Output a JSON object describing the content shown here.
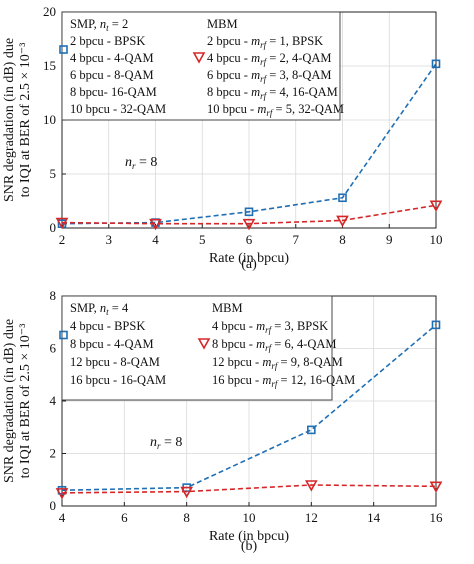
{
  "chart_data": [
    {
      "type": "line",
      "panel_label": "(a)",
      "xlabel": "Rate (in bpcu)",
      "ylabel_line1": "SNR degradation (in dB) due",
      "ylabel_line2": "to IQI at BER of 2.5 × 10⁻³",
      "xlim": [
        2,
        10
      ],
      "ylim": [
        0,
        20
      ],
      "xticks": [
        2,
        3,
        4,
        5,
        6,
        7,
        8,
        9,
        10
      ],
      "yticks": [
        0,
        5,
        10,
        15,
        20
      ],
      "grid": true,
      "legend_placement": "top-left",
      "annotation": "n_r = 8",
      "legend": {
        "smp_header": "SMP, n_t = 2",
        "mbm_header": "MBM",
        "smp_entries": [
          "2 bpcu - BPSK",
          "4 bpcu - 4-QAM",
          "6 bpcu - 8-QAM",
          "8 bpcu- 16-QAM",
          "10 bpcu - 32-QAM"
        ],
        "mbm_entries": [
          "2 bpcu - m_rf = 1, BPSK",
          "4 bpcu - m_rf = 2, 4-QAM",
          "6 bpcu - m_rf = 3, 8-QAM",
          "8 bpcu - m_rf = 4, 16-QAM",
          "10 bpcu - m_rf = 5, 32-QAM"
        ]
      },
      "series": [
        {
          "name": "SMP",
          "color": "#1f6fb5",
          "marker": "square",
          "x": [
            2,
            4,
            6,
            8,
            10
          ],
          "y": [
            0.4,
            0.5,
            1.5,
            2.8,
            15.2
          ]
        },
        {
          "name": "MBM",
          "color": "#d62728",
          "marker": "triangle-down",
          "x": [
            2,
            4,
            6,
            8,
            10
          ],
          "y": [
            0.5,
            0.4,
            0.4,
            0.7,
            2.1
          ]
        }
      ]
    },
    {
      "type": "line",
      "panel_label": "(b)",
      "xlabel": "Rate (in bpcu)",
      "ylabel_line1": "SNR degradation (in dB) due",
      "ylabel_line2": "to IQI at BER of 2.5 × 10⁻³",
      "xlim": [
        4,
        16
      ],
      "ylim": [
        0,
        8
      ],
      "xticks": [
        4,
        6,
        8,
        10,
        12,
        14,
        16
      ],
      "yticks": [
        0,
        2,
        4,
        6,
        8
      ],
      "grid": true,
      "legend_placement": "top-left",
      "annotation": "n_r = 8",
      "legend": {
        "smp_header": "SMP, n_t = 4",
        "mbm_header": "MBM",
        "smp_entries": [
          "4 bpcu - BPSK",
          "8 bpcu - 4-QAM",
          "12 bpcu - 8-QAM",
          "16 bpcu - 16-QAM"
        ],
        "mbm_entries": [
          "4 bpcu - m_rf = 3, BPSK",
          "8 bpcu - m_rf = 6, 4-QAM",
          "12 bpcu - m_rf = 9, 8-QAM",
          "16 bpcu - m_rf = 12, 16-QAM"
        ]
      },
      "series": [
        {
          "name": "SMP",
          "color": "#1f6fb5",
          "marker": "square",
          "x": [
            4,
            8,
            12,
            16
          ],
          "y": [
            0.6,
            0.7,
            2.9,
            6.9
          ]
        },
        {
          "name": "MBM",
          "color": "#d62728",
          "marker": "triangle-down",
          "x": [
            4,
            8,
            12,
            16
          ],
          "y": [
            0.5,
            0.55,
            0.8,
            0.75
          ]
        }
      ]
    }
  ]
}
